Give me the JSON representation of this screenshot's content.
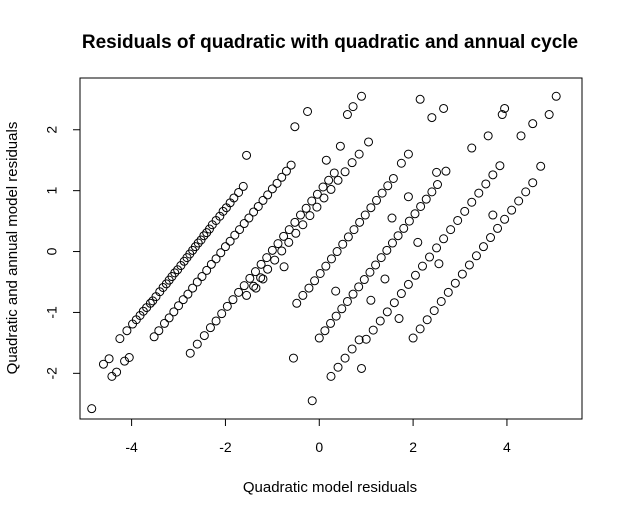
{
  "chart_data": {
    "type": "scatter",
    "title": "Residuals of quadratic with quadratic and annual cycle",
    "xlabel": "Quadratic model residuals",
    "ylabel": "Quadratic and annual model residuals",
    "xlim": [
      -5.1,
      5.6
    ],
    "ylim": [
      -2.75,
      2.85
    ],
    "x_ticks": [
      -4,
      -2,
      0,
      2,
      4
    ],
    "y_ticks": [
      -2,
      -1,
      0,
      1,
      2
    ],
    "x_tick_labels": [
      "-4",
      "-2",
      "0",
      "2",
      "4"
    ],
    "y_tick_labels": [
      "-2",
      "-1",
      "0",
      "1",
      "2"
    ],
    "marker": "open-circle",
    "grid": false,
    "legend": "none",
    "stripe_offsets": [
      3.15,
      1.9,
      0.55,
      -0.6,
      -1.75,
      -2.9
    ],
    "points": [
      {
        "x": -4.85,
        "y": -2.58
      },
      {
        "x": -4.42,
        "y": -2.05
      },
      {
        "x": -4.32,
        "y": -1.98
      },
      {
        "x": -4.15,
        "y": -1.8
      },
      {
        "x": -4.05,
        "y": -1.74
      },
      {
        "x": -4.6,
        "y": -1.85
      },
      {
        "x": -4.48,
        "y": -1.76
      },
      {
        "x": -4.25,
        "y": -1.43
      },
      {
        "x": -4.1,
        "y": -1.3
      },
      {
        "x": -3.98,
        "y": -1.19
      },
      {
        "x": -3.9,
        "y": -1.12
      },
      {
        "x": -3.82,
        "y": -1.05
      },
      {
        "x": -3.75,
        "y": -0.98
      },
      {
        "x": -3.68,
        "y": -0.92
      },
      {
        "x": -3.6,
        "y": -0.85
      },
      {
        "x": -3.55,
        "y": -0.81
      },
      {
        "x": -3.48,
        "y": -0.74
      },
      {
        "x": -3.4,
        "y": -0.66
      },
      {
        "x": -3.33,
        "y": -0.59
      },
      {
        "x": -3.26,
        "y": -0.53
      },
      {
        "x": -3.2,
        "y": -0.47
      },
      {
        "x": -3.14,
        "y": -0.41
      },
      {
        "x": -3.08,
        "y": -0.35
      },
      {
        "x": -3.02,
        "y": -0.3
      },
      {
        "x": -2.95,
        "y": -0.23
      },
      {
        "x": -2.88,
        "y": -0.16
      },
      {
        "x": -2.82,
        "y": -0.1
      },
      {
        "x": -2.76,
        "y": -0.04
      },
      {
        "x": -2.7,
        "y": 0.02
      },
      {
        "x": -2.64,
        "y": 0.08
      },
      {
        "x": -2.58,
        "y": 0.14
      },
      {
        "x": -2.52,
        "y": 0.19
      },
      {
        "x": -2.46,
        "y": 0.26
      },
      {
        "x": -2.4,
        "y": 0.31
      },
      {
        "x": -2.34,
        "y": 0.37
      },
      {
        "x": -2.28,
        "y": 0.44
      },
      {
        "x": -2.2,
        "y": 0.51
      },
      {
        "x": -2.12,
        "y": 0.58
      },
      {
        "x": -2.05,
        "y": 0.66
      },
      {
        "x": -1.98,
        "y": 0.72
      },
      {
        "x": -1.9,
        "y": 0.8
      },
      {
        "x": -1.82,
        "y": 0.88
      },
      {
        "x": -1.72,
        "y": 0.97
      },
      {
        "x": -1.62,
        "y": 1.07
      },
      {
        "x": -1.55,
        "y": 1.58
      },
      {
        "x": -3.52,
        "y": -1.4
      },
      {
        "x": -3.42,
        "y": -1.3
      },
      {
        "x": -3.3,
        "y": -1.18
      },
      {
        "x": -3.2,
        "y": -1.09
      },
      {
        "x": -3.1,
        "y": -0.99
      },
      {
        "x": -3.0,
        "y": -0.89
      },
      {
        "x": -2.9,
        "y": -0.79
      },
      {
        "x": -2.8,
        "y": -0.7
      },
      {
        "x": -2.7,
        "y": -0.6
      },
      {
        "x": -2.6,
        "y": -0.5
      },
      {
        "x": -2.5,
        "y": -0.41
      },
      {
        "x": -2.4,
        "y": -0.31
      },
      {
        "x": -2.3,
        "y": -0.21
      },
      {
        "x": -2.2,
        "y": -0.12
      },
      {
        "x": -2.1,
        "y": -0.02
      },
      {
        "x": -2.0,
        "y": 0.08
      },
      {
        "x": -1.9,
        "y": 0.17
      },
      {
        "x": -1.8,
        "y": 0.27
      },
      {
        "x": -1.7,
        "y": 0.36
      },
      {
        "x": -1.6,
        "y": 0.46
      },
      {
        "x": -1.5,
        "y": 0.55
      },
      {
        "x": -1.4,
        "y": 0.65
      },
      {
        "x": -1.3,
        "y": 0.74
      },
      {
        "x": -1.2,
        "y": 0.84
      },
      {
        "x": -1.1,
        "y": 0.93
      },
      {
        "x": -1.0,
        "y": 1.03
      },
      {
        "x": -0.9,
        "y": 1.12
      },
      {
        "x": -0.8,
        "y": 1.22
      },
      {
        "x": -0.7,
        "y": 1.32
      },
      {
        "x": -0.6,
        "y": 1.42
      },
      {
        "x": -0.52,
        "y": 2.05
      },
      {
        "x": -0.25,
        "y": 2.3
      },
      {
        "x": -2.75,
        "y": -1.67
      },
      {
        "x": -2.6,
        "y": -1.52
      },
      {
        "x": -2.45,
        "y": -1.38
      },
      {
        "x": -2.32,
        "y": -1.25
      },
      {
        "x": -2.2,
        "y": -1.14
      },
      {
        "x": -2.08,
        "y": -1.02
      },
      {
        "x": -1.96,
        "y": -0.9
      },
      {
        "x": -1.84,
        "y": -0.79
      },
      {
        "x": -1.72,
        "y": -0.67
      },
      {
        "x": -1.6,
        "y": -0.56
      },
      {
        "x": -1.48,
        "y": -0.44
      },
      {
        "x": -1.36,
        "y": -0.33
      },
      {
        "x": -1.24,
        "y": -0.21
      },
      {
        "x": -1.12,
        "y": -0.1
      },
      {
        "x": -1.0,
        "y": 0.02
      },
      {
        "x": -0.88,
        "y": 0.13
      },
      {
        "x": -0.76,
        "y": 0.25
      },
      {
        "x": -0.64,
        "y": 0.36
      },
      {
        "x": -0.52,
        "y": 0.48
      },
      {
        "x": -0.4,
        "y": 0.6
      },
      {
        "x": -0.28,
        "y": 0.71
      },
      {
        "x": -0.16,
        "y": 0.83
      },
      {
        "x": -0.04,
        "y": 0.94
      },
      {
        "x": 0.08,
        "y": 1.06
      },
      {
        "x": 0.2,
        "y": 1.17
      },
      {
        "x": 0.32,
        "y": 1.29
      },
      {
        "x": 0.45,
        "y": 1.73
      },
      {
        "x": 0.6,
        "y": 2.25
      },
      {
        "x": 0.72,
        "y": 2.38
      },
      {
        "x": 0.9,
        "y": 2.55
      },
      {
        "x": -0.55,
        "y": -1.75
      },
      {
        "x": -1.35,
        "y": -0.6
      },
      {
        "x": -1.2,
        "y": -0.45
      },
      {
        "x": -0.15,
        "y": -2.45
      },
      {
        "x": -1.55,
        "y": -0.72
      },
      {
        "x": -1.4,
        "y": -0.57
      },
      {
        "x": -1.25,
        "y": -0.43
      },
      {
        "x": -1.1,
        "y": -0.29
      },
      {
        "x": -0.95,
        "y": -0.14
      },
      {
        "x": -0.8,
        "y": 0.01
      },
      {
        "x": -0.65,
        "y": 0.15
      },
      {
        "x": -0.5,
        "y": 0.3
      },
      {
        "x": -0.35,
        "y": 0.44
      },
      {
        "x": -0.2,
        "y": 0.59
      },
      {
        "x": -0.05,
        "y": 0.73
      },
      {
        "x": 0.1,
        "y": 0.88
      },
      {
        "x": 0.25,
        "y": 1.02
      },
      {
        "x": 0.4,
        "y": 1.17
      },
      {
        "x": 0.55,
        "y": 1.31
      },
      {
        "x": 0.7,
        "y": 1.46
      },
      {
        "x": 0.85,
        "y": 1.6
      },
      {
        "x": -0.48,
        "y": -0.85
      },
      {
        "x": -0.35,
        "y": -0.72
      },
      {
        "x": -0.22,
        "y": -0.6
      },
      {
        "x": -0.1,
        "y": -0.48
      },
      {
        "x": 0.02,
        "y": -0.36
      },
      {
        "x": 0.14,
        "y": -0.24
      },
      {
        "x": 0.26,
        "y": -0.12
      },
      {
        "x": 0.38,
        "y": 0.0
      },
      {
        "x": 0.5,
        "y": 0.12
      },
      {
        "x": 0.62,
        "y": 0.24
      },
      {
        "x": 0.74,
        "y": 0.36
      },
      {
        "x": 0.86,
        "y": 0.48
      },
      {
        "x": 0.98,
        "y": 0.6
      },
      {
        "x": 1.1,
        "y": 0.72
      },
      {
        "x": 1.22,
        "y": 0.84
      },
      {
        "x": 1.34,
        "y": 0.96
      },
      {
        "x": 1.46,
        "y": 1.08
      },
      {
        "x": 1.58,
        "y": 1.2
      },
      {
        "x": 1.75,
        "y": 1.45
      },
      {
        "x": 1.9,
        "y": 1.6
      },
      {
        "x": 0.25,
        "y": -2.05
      },
      {
        "x": 0.4,
        "y": -1.9
      },
      {
        "x": 0.55,
        "y": -1.75
      },
      {
        "x": 0.7,
        "y": -1.6
      },
      {
        "x": 0.85,
        "y": -1.45
      },
      {
        "x": 0.0,
        "y": -1.42
      },
      {
        "x": 0.12,
        "y": -1.3
      },
      {
        "x": 0.24,
        "y": -1.18
      },
      {
        "x": 0.36,
        "y": -1.06
      },
      {
        "x": 0.48,
        "y": -0.94
      },
      {
        "x": 0.6,
        "y": -0.82
      },
      {
        "x": 0.72,
        "y": -0.7
      },
      {
        "x": 0.84,
        "y": -0.58
      },
      {
        "x": 0.96,
        "y": -0.46
      },
      {
        "x": 1.08,
        "y": -0.34
      },
      {
        "x": 1.2,
        "y": -0.22
      },
      {
        "x": 1.32,
        "y": -0.1
      },
      {
        "x": 1.44,
        "y": 0.02
      },
      {
        "x": 1.56,
        "y": 0.14
      },
      {
        "x": 1.68,
        "y": 0.26
      },
      {
        "x": 1.8,
        "y": 0.38
      },
      {
        "x": 1.92,
        "y": 0.5
      },
      {
        "x": 2.04,
        "y": 0.62
      },
      {
        "x": 2.16,
        "y": 0.74
      },
      {
        "x": 2.28,
        "y": 0.86
      },
      {
        "x": 2.4,
        "y": 0.98
      },
      {
        "x": 2.52,
        "y": 1.1
      },
      {
        "x": 2.7,
        "y": 1.32
      },
      {
        "x": 1.55,
        "y": 0.55
      },
      {
        "x": 1.9,
        "y": 0.9
      },
      {
        "x": 1.1,
        "y": -0.8
      },
      {
        "x": 0.9,
        "y": -1.92
      },
      {
        "x": 1.0,
        "y": -1.44
      },
      {
        "x": 1.15,
        "y": -1.29
      },
      {
        "x": 1.3,
        "y": -1.14
      },
      {
        "x": 1.45,
        "y": -0.99
      },
      {
        "x": 1.6,
        "y": -0.84
      },
      {
        "x": 1.75,
        "y": -0.69
      },
      {
        "x": 1.9,
        "y": -0.54
      },
      {
        "x": 2.05,
        "y": -0.39
      },
      {
        "x": 2.2,
        "y": -0.24
      },
      {
        "x": 2.35,
        "y": -0.09
      },
      {
        "x": 2.5,
        "y": 0.06
      },
      {
        "x": 2.65,
        "y": 0.21
      },
      {
        "x": 2.8,
        "y": 0.36
      },
      {
        "x": 2.95,
        "y": 0.51
      },
      {
        "x": 3.1,
        "y": 0.66
      },
      {
        "x": 3.25,
        "y": 0.81
      },
      {
        "x": 3.4,
        "y": 0.96
      },
      {
        "x": 3.55,
        "y": 1.11
      },
      {
        "x": 3.7,
        "y": 1.26
      },
      {
        "x": 3.85,
        "y": 1.41
      },
      {
        "x": 2.0,
        "y": -1.42
      },
      {
        "x": 2.15,
        "y": -1.27
      },
      {
        "x": 2.3,
        "y": -1.12
      },
      {
        "x": 2.45,
        "y": -0.97
      },
      {
        "x": 2.6,
        "y": -0.82
      },
      {
        "x": 2.75,
        "y": -0.67
      },
      {
        "x": 2.9,
        "y": -0.52
      },
      {
        "x": 3.05,
        "y": -0.37
      },
      {
        "x": 3.2,
        "y": -0.22
      },
      {
        "x": 3.35,
        "y": -0.07
      },
      {
        "x": 3.5,
        "y": 0.08
      },
      {
        "x": 3.65,
        "y": 0.23
      },
      {
        "x": 3.8,
        "y": 0.38
      },
      {
        "x": 3.95,
        "y": 0.53
      },
      {
        "x": 4.1,
        "y": 0.68
      },
      {
        "x": 4.25,
        "y": 0.83
      },
      {
        "x": 4.4,
        "y": 0.98
      },
      {
        "x": 4.55,
        "y": 1.13
      },
      {
        "x": 4.72,
        "y": 1.4
      },
      {
        "x": 4.3,
        "y": 1.9
      },
      {
        "x": 4.55,
        "y": 2.1
      },
      {
        "x": 4.9,
        "y": 2.25
      },
      {
        "x": 5.05,
        "y": 2.55
      },
      {
        "x": 3.9,
        "y": 2.25
      },
      {
        "x": 3.95,
        "y": 2.35
      },
      {
        "x": 2.15,
        "y": 2.5
      },
      {
        "x": 2.65,
        "y": 2.35
      },
      {
        "x": 3.6,
        "y": 1.9
      },
      {
        "x": 2.5,
        "y": 1.3
      },
      {
        "x": 3.25,
        "y": 1.7
      },
      {
        "x": 2.4,
        "y": 2.2
      },
      {
        "x": 1.4,
        "y": -0.45
      },
      {
        "x": 2.1,
        "y": 0.15
      },
      {
        "x": 1.05,
        "y": 1.8
      },
      {
        "x": 0.15,
        "y": 1.5
      },
      {
        "x": 0.35,
        "y": -0.65
      },
      {
        "x": -0.75,
        "y": -0.25
      },
      {
        "x": 2.55,
        "y": -0.2
      },
      {
        "x": 3.7,
        "y": 0.6
      },
      {
        "x": 1.7,
        "y": -1.1
      }
    ]
  }
}
